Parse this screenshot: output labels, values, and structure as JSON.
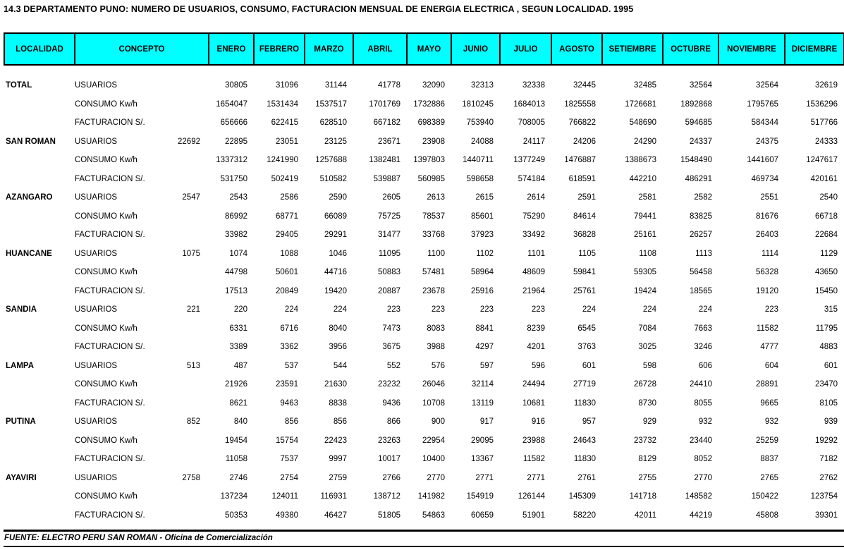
{
  "title": "14.3 DEPARTAMENTO PUNO: NUMERO DE USUARIOS, CONSUMO, FACTURACION MENSUAL DE ENERGIA ELECTRICA , SEGUN LOCALIDAD. 1995",
  "colors": {
    "header_bg": "#00ffff",
    "border": "#000000",
    "text": "#000000"
  },
  "table": {
    "headers": [
      "LOCALIDAD",
      "CONCEPTO",
      "ENERO",
      "FEBRERO",
      "MARZO",
      "ABRIL",
      "MAYO",
      "JUNIO",
      "JULIO",
      "AGOSTO",
      "SETIEMBRE",
      "OCTUBRE",
      "NOVIEMBRE",
      "DICIEMBRE"
    ],
    "localities": [
      {
        "name": "TOTAL",
        "rows": [
          {
            "concept": "USUARIOS",
            "pre": "",
            "values": [
              30805,
              31096,
              31144,
              41778,
              32090,
              32313,
              32338,
              32445,
              32485,
              32564,
              32564,
              32619
            ]
          },
          {
            "concept": "CONSUMO Kw/h",
            "pre": "",
            "values": [
              1654047,
              1531434,
              1537517,
              1701769,
              1732886,
              1810245,
              1684013,
              1825558,
              1726681,
              1892868,
              1795765,
              1536296
            ]
          },
          {
            "concept": "FACTURACION S/.",
            "pre": "",
            "values": [
              656666,
              622415,
              628510,
              667182,
              698389,
              753940,
              708005,
              766822,
              548690,
              594685,
              584344,
              517766
            ]
          }
        ]
      },
      {
        "name": "SAN ROMAN",
        "rows": [
          {
            "concept": "USUARIOS",
            "pre": 22692,
            "values": [
              22895,
              23051,
              23125,
              23671,
              23908,
              24088,
              24117,
              24206,
              24290,
              24337,
              24375,
              24333
            ]
          },
          {
            "concept": "CONSUMO Kw/h",
            "pre": "",
            "values": [
              1337312,
              1241990,
              1257688,
              1382481,
              1397803,
              1440711,
              1377249,
              1476887,
              1388673,
              1548490,
              1441607,
              1247617
            ]
          },
          {
            "concept": "FACTURACION S/.",
            "pre": "",
            "values": [
              531750,
              502419,
              510582,
              539887,
              560985,
              598658,
              574184,
              618591,
              442210,
              486291,
              469734,
              420161
            ]
          }
        ]
      },
      {
        "name": "AZANGARO",
        "rows": [
          {
            "concept": "USUARIOS",
            "pre": 2547,
            "values": [
              2543,
              2586,
              2590,
              2605,
              2613,
              2615,
              2614,
              2591,
              2581,
              2582,
              2551,
              2540
            ]
          },
          {
            "concept": "CONSUMO Kw/h",
            "pre": "",
            "values": [
              86992,
              68771,
              66089,
              75725,
              78537,
              85601,
              75290,
              84614,
              79441,
              83825,
              81676,
              66718
            ]
          },
          {
            "concept": "FACTURACION S/.",
            "pre": "",
            "values": [
              33982,
              29405,
              29291,
              31477,
              33768,
              37923,
              33492,
              36828,
              25161,
              26257,
              26403,
              22684
            ]
          }
        ]
      },
      {
        "name": "HUANCANE",
        "rows": [
          {
            "concept": "USUARIOS",
            "pre": 1075,
            "values": [
              1074,
              1088,
              1046,
              11095,
              1100,
              1102,
              1101,
              1105,
              1108,
              1113,
              1114,
              1129
            ]
          },
          {
            "concept": "CONSUMO Kw/h",
            "pre": "",
            "values": [
              44798,
              50601,
              44716,
              50883,
              57481,
              58964,
              48609,
              59841,
              59305,
              56458,
              56328,
              43650
            ]
          },
          {
            "concept": "FACTURACION S/.",
            "pre": "",
            "values": [
              17513,
              20849,
              19420,
              20887,
              23678,
              25916,
              21964,
              25761,
              19424,
              18565,
              19120,
              15450
            ]
          }
        ]
      },
      {
        "name": "SANDIA",
        "rows": [
          {
            "concept": "USUARIOS",
            "pre": 221,
            "values": [
              220,
              224,
              224,
              223,
              223,
              223,
              223,
              224,
              224,
              224,
              223,
              315
            ]
          },
          {
            "concept": "CONSUMO Kw/h",
            "pre": "",
            "values": [
              6331,
              6716,
              8040,
              7473,
              8083,
              8841,
              8239,
              6545,
              7084,
              7663,
              11582,
              11795
            ]
          },
          {
            "concept": "FACTURACION S/.",
            "pre": "",
            "values": [
              3389,
              3362,
              3956,
              3675,
              3988,
              4297,
              4201,
              3763,
              3025,
              3246,
              4777,
              4883
            ]
          }
        ]
      },
      {
        "name": "LAMPA",
        "rows": [
          {
            "concept": "USUARIOS",
            "pre": 513,
            "values": [
              487,
              537,
              544,
              552,
              576,
              597,
              596,
              601,
              598,
              606,
              604,
              601
            ]
          },
          {
            "concept": "CONSUMO Kw/h",
            "pre": "",
            "values": [
              21926,
              23591,
              21630,
              23232,
              26046,
              32114,
              24494,
              27719,
              26728,
              24410,
              28891,
              23470
            ]
          },
          {
            "concept": "FACTURACION S/.",
            "pre": "",
            "values": [
              8621,
              9463,
              8838,
              9436,
              10708,
              13119,
              10681,
              11830,
              8730,
              8055,
              9665,
              8105
            ]
          }
        ]
      },
      {
        "name": "PUTINA",
        "rows": [
          {
            "concept": "USUARIOS",
            "pre": 852,
            "values": [
              840,
              856,
              856,
              866,
              900,
              917,
              916,
              957,
              929,
              932,
              932,
              939
            ]
          },
          {
            "concept": "CONSUMO Kw/h",
            "pre": "",
            "values": [
              19454,
              15754,
              22423,
              23263,
              22954,
              29095,
              23988,
              24643,
              23732,
              23440,
              25259,
              19292
            ]
          },
          {
            "concept": "FACTURACION S/.",
            "pre": "",
            "values": [
              11058,
              7537,
              9997,
              10017,
              10400,
              13367,
              11582,
              11830,
              8129,
              8052,
              8837,
              7182
            ]
          }
        ]
      },
      {
        "name": "AYAVIRI",
        "rows": [
          {
            "concept": "USUARIOS",
            "pre": 2758,
            "values": [
              2746,
              2754,
              2759,
              2766,
              2770,
              2771,
              2771,
              2761,
              2755,
              2770,
              2765,
              2762
            ]
          },
          {
            "concept": "CONSUMO Kw/h",
            "pre": "",
            "values": [
              137234,
              124011,
              116931,
              138712,
              141982,
              154919,
              126144,
              145309,
              141718,
              148582,
              150422,
              123754
            ]
          },
          {
            "concept": "FACTURACION S/.",
            "pre": "",
            "values": [
              50353,
              49380,
              46427,
              51805,
              54863,
              60659,
              51901,
              58220,
              42011,
              44219,
              45808,
              39301
            ]
          }
        ]
      }
    ]
  },
  "footer": {
    "source": "FUENTE: ELECTRO PERU SAN ROMAN - Oficina de Comercialización"
  }
}
